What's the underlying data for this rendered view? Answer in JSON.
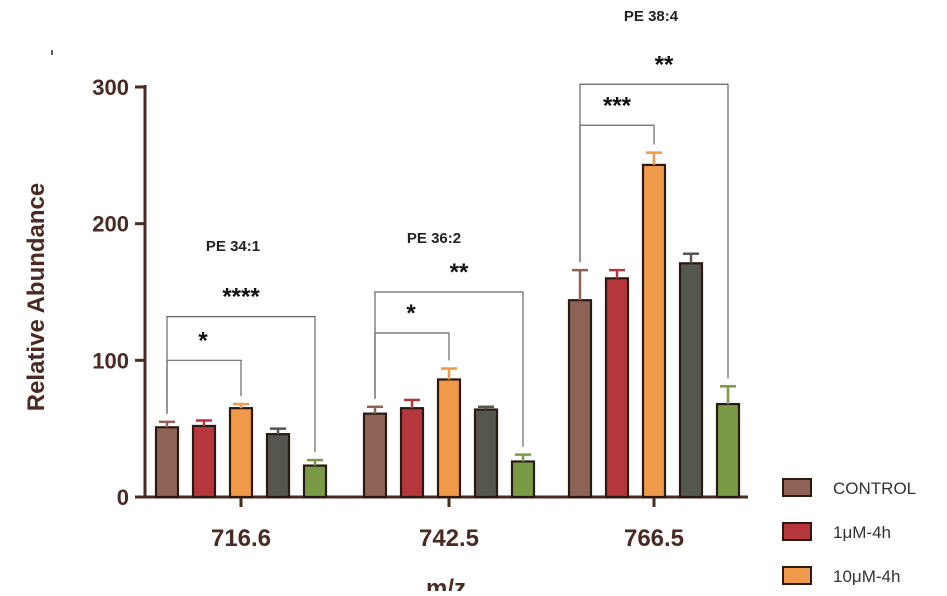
{
  "chart_data": {
    "type": "bar",
    "xlabel": "m/z",
    "ylabel": "Relative Abundance",
    "ylim": [
      0,
      300
    ],
    "yticks": [
      0,
      100,
      200,
      300
    ],
    "categories": [
      "716.6",
      "742.5",
      "766.5"
    ],
    "group_titles": [
      "PE 34:1",
      "PE 36:2",
      "PE 38:4"
    ],
    "series": [
      {
        "name": "CONTROL",
        "values": [
          51,
          61,
          144
        ],
        "errors": [
          4,
          5,
          22
        ],
        "color": "#8c6354"
      },
      {
        "name": "1μM-4h",
        "values": [
          52,
          65,
          160
        ],
        "errors": [
          4,
          6,
          6
        ],
        "color": "#b5373b"
      },
      {
        "name": "10μM-4h",
        "values": [
          65,
          86,
          243
        ],
        "errors": [
          3,
          8,
          9
        ],
        "color": "#ef9a4a"
      },
      {
        "name": "",
        "values": [
          46,
          64,
          171
        ],
        "errors": [
          4,
          2,
          7
        ],
        "color": "#55564d"
      },
      {
        "name": "",
        "values": [
          23,
          26,
          68
        ],
        "errors": [
          4,
          5,
          13
        ],
        "color": "#7a9a48"
      }
    ],
    "significance": [
      {
        "group": 0,
        "from": 0,
        "to": 2,
        "level": 100,
        "label": "*"
      },
      {
        "group": 0,
        "from": 0,
        "to": 4,
        "level": 132,
        "label": "****"
      },
      {
        "group": 1,
        "from": 0,
        "to": 2,
        "level": 120,
        "label": "*"
      },
      {
        "group": 1,
        "from": 0,
        "to": 4,
        "level": 150,
        "label": "**"
      },
      {
        "group": 2,
        "from": 0,
        "to": 2,
        "level": 272,
        "label": "***"
      },
      {
        "group": 2,
        "from": 0,
        "to": 4,
        "level": 302,
        "label": "**"
      }
    ],
    "legend_position": "bottom-right",
    "axis_color": "#4a2a22"
  }
}
